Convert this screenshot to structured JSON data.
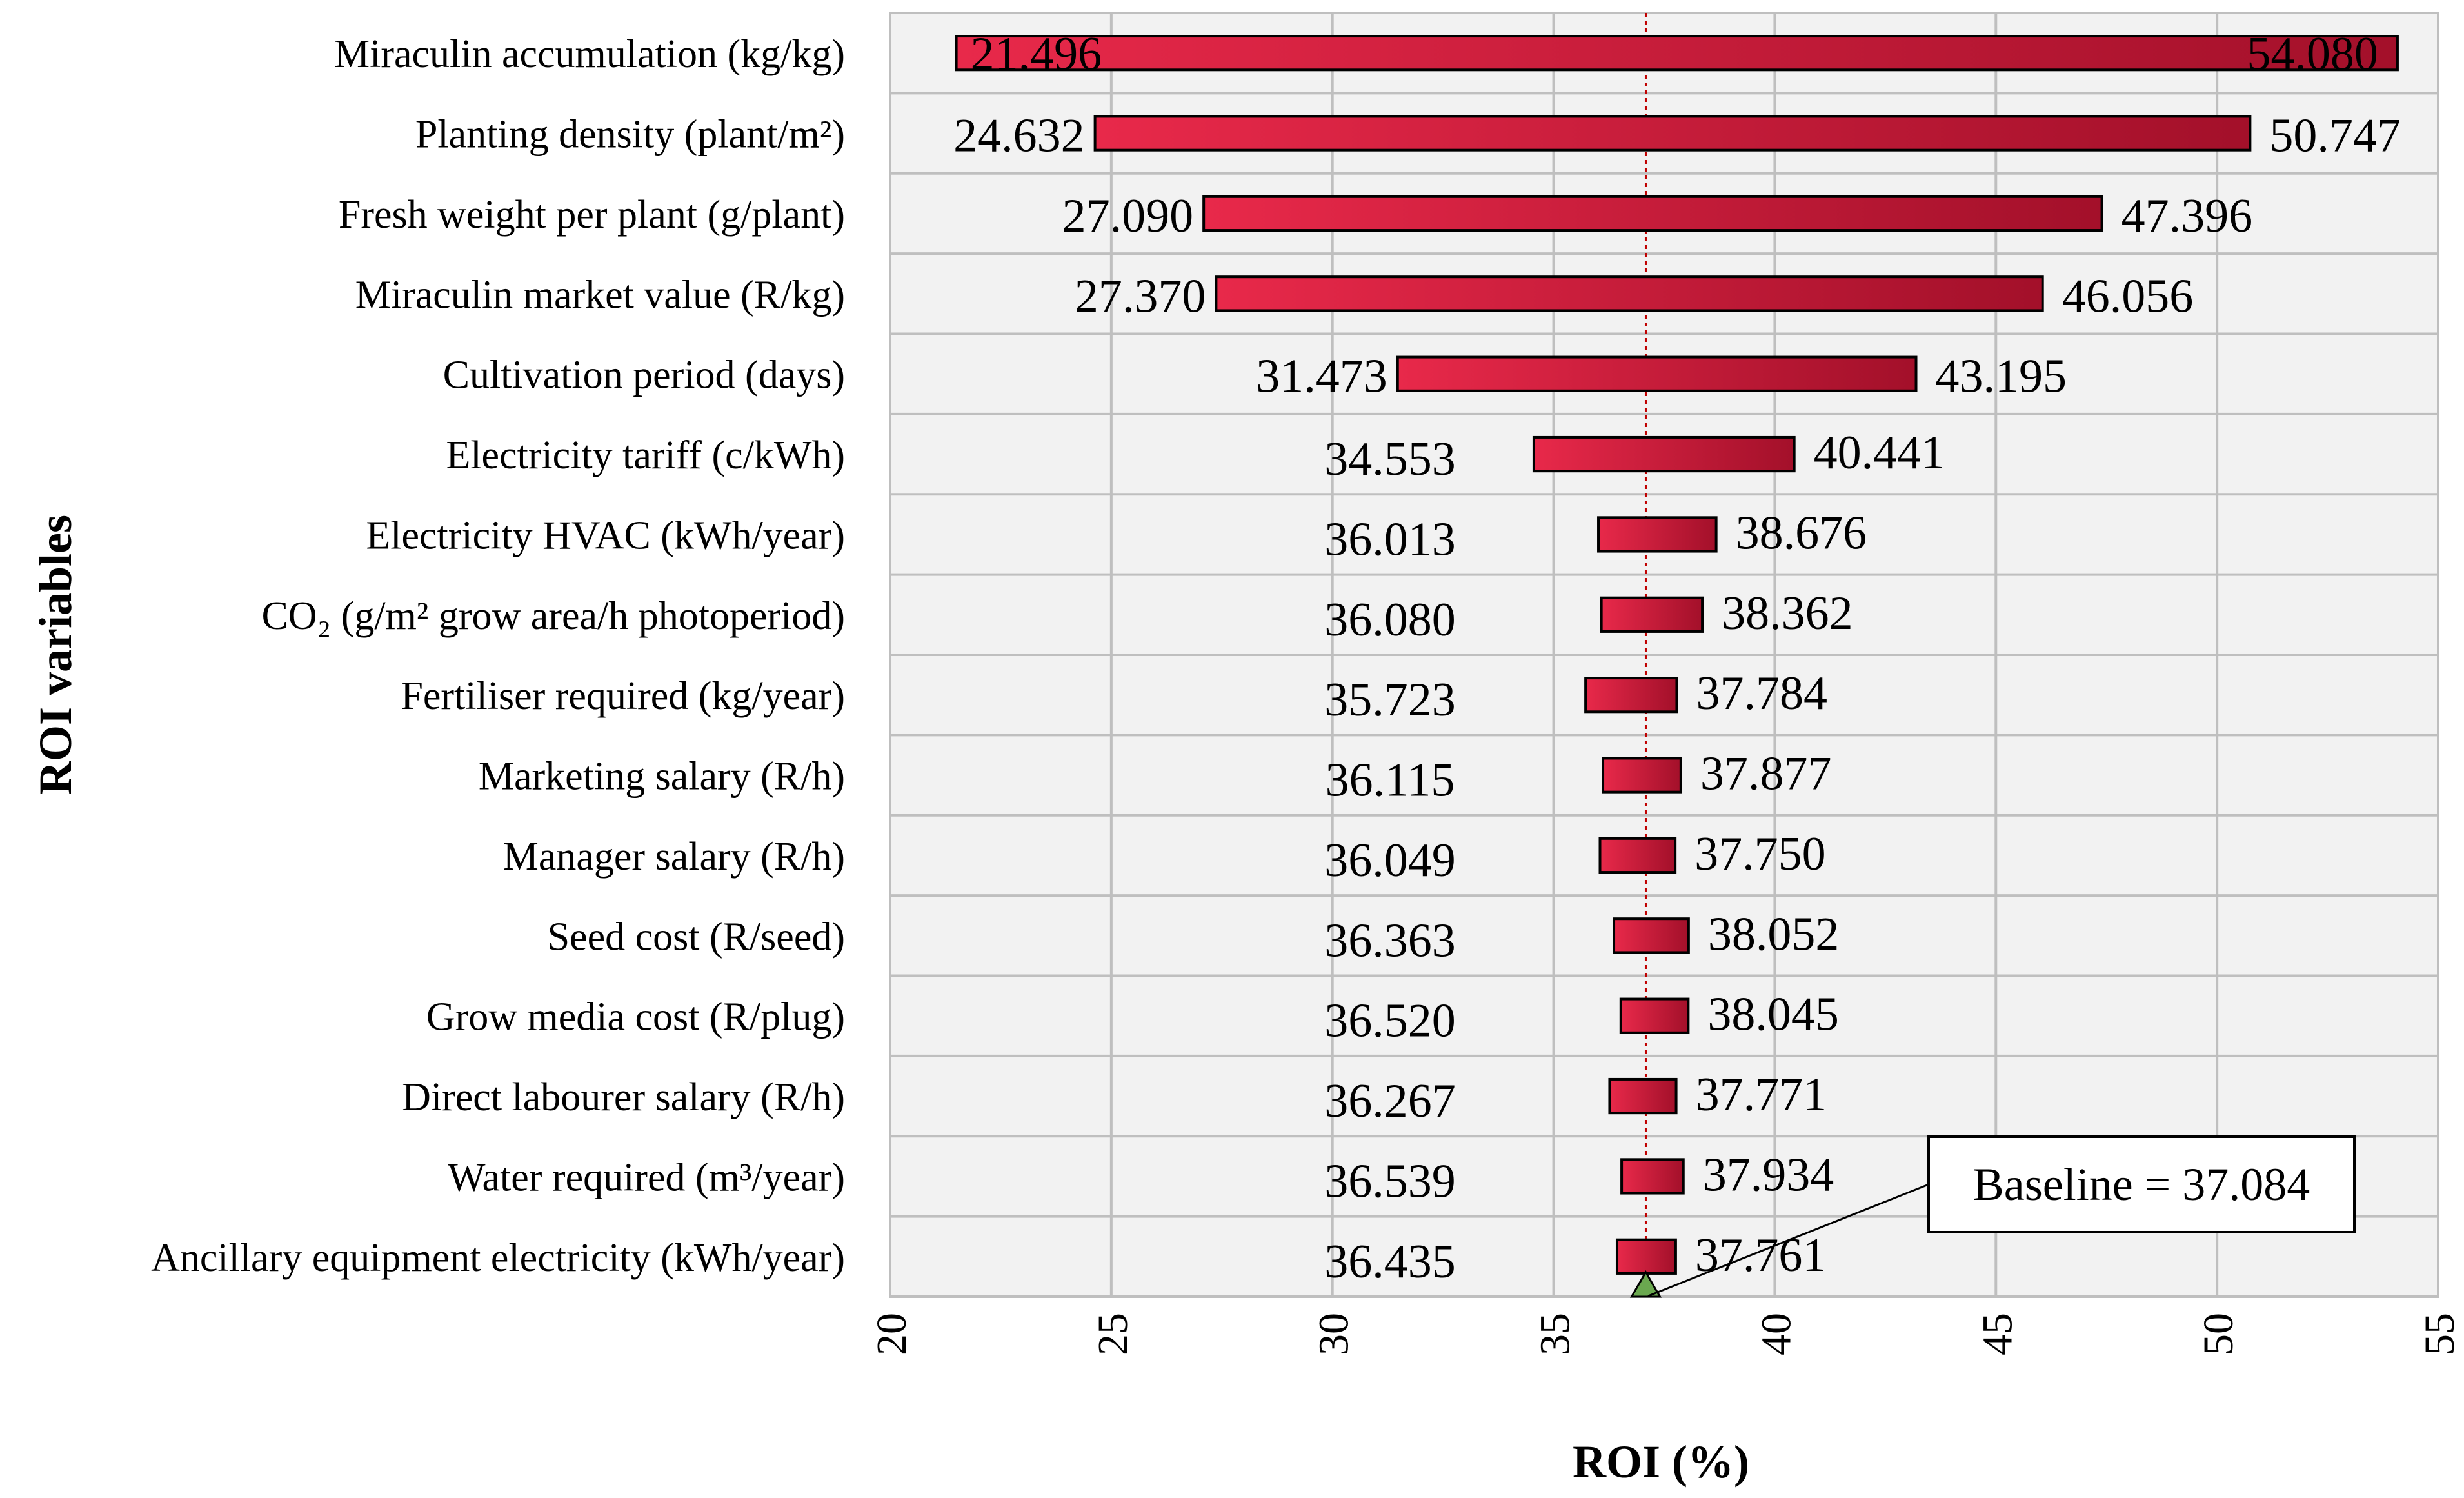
{
  "chart_data": {
    "type": "tornado",
    "ylabel": "ROI variables",
    "xlabel": "ROI (%)",
    "xlim": [
      20,
      55
    ],
    "xticks": [
      20,
      25,
      30,
      35,
      40,
      45,
      50,
      55
    ],
    "baseline": 37.084,
    "baseline_label": "Baseline = 37.084",
    "categories": [
      "Miraculin accumulation (kg/kg)",
      "Planting density (plant/m²)",
      "Fresh weight per plant (g/plant)",
      "Miraculin market value (R/kg)",
      "Cultivation period (days)",
      "Electricity tariff (c/kWh)",
      "Electricity HVAC (kWh/year)",
      "CO₂ (g/m² grow area/h photoperiod)",
      "Fertiliser required (kg/year)",
      "Marketing salary (R/h)",
      "Manager salary (R/h)",
      "Seed cost (R/seed)",
      "Grow media  cost (R/plug)",
      "Direct labourer salary (R/h)",
      "Water required (m³/year)",
      "Ancillary equipment electricity (kWh/year)"
    ],
    "low": [
      21.496,
      24.632,
      27.09,
      27.37,
      31.473,
      34.553,
      36.013,
      36.08,
      35.723,
      36.115,
      36.049,
      36.363,
      36.52,
      36.267,
      36.539,
      36.435
    ],
    "high": [
      54.08,
      50.747,
      47.396,
      46.056,
      43.195,
      40.441,
      38.676,
      38.362,
      37.784,
      37.877,
      37.75,
      38.052,
      38.045,
      37.771,
      37.934,
      37.761
    ],
    "low_labels": [
      "21.496",
      "24.632",
      "27.090",
      "27.370",
      "31.473",
      "34.553",
      "36.013",
      "36.080",
      "35.723",
      "36.115",
      "36.049",
      "36.363",
      "36.520",
      "36.267",
      "36.539",
      "36.435"
    ],
    "high_labels": [
      "54.080",
      "50.747",
      "47.396",
      "46.056",
      "43.195",
      "40.441",
      "38.676",
      "38.362",
      "37.784",
      "37.877",
      "37.750",
      "38.052",
      "38.045",
      "37.771",
      "37.934",
      "37.761"
    ],
    "colors": {
      "bar_light": "#e8294a",
      "bar_dark": "#a3102a",
      "plot_bg": "#f2f2f2",
      "grid": "#bfbfbf",
      "baseline_line": "#c00000",
      "marker": "#6aa84f"
    }
  }
}
